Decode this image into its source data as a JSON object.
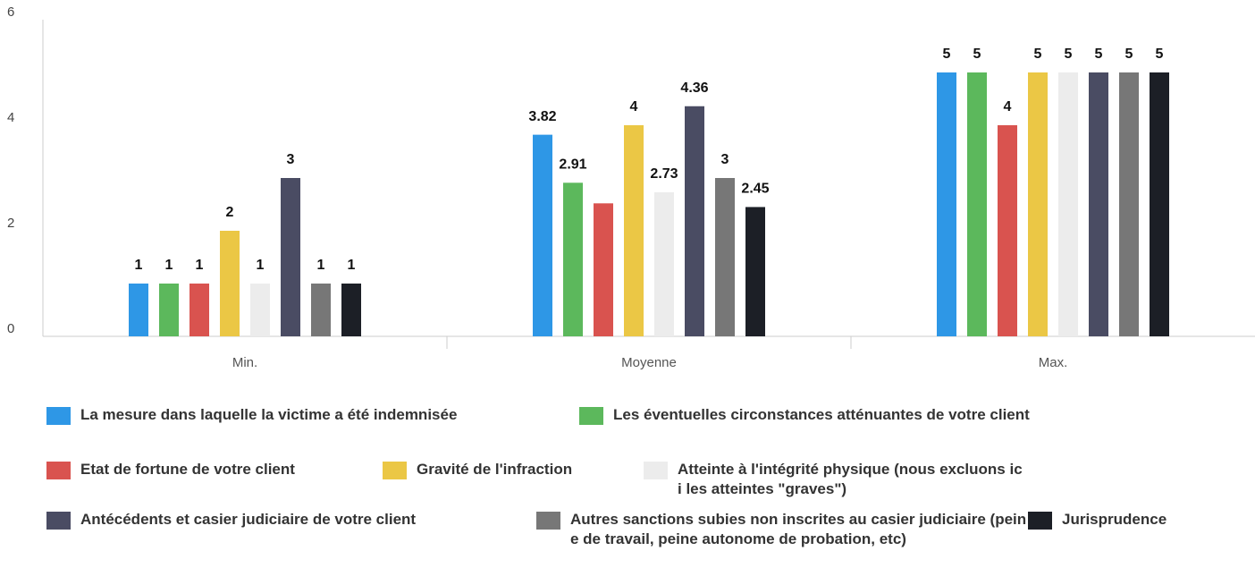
{
  "chart_data": {
    "type": "bar",
    "categories": [
      "Min.",
      "Moyenne",
      "Max."
    ],
    "ylim": [
      0,
      6
    ],
    "yticks": [
      0,
      2,
      4,
      6
    ],
    "series": [
      {
        "name": "La mesure dans laquelle la victime a été indemnisée",
        "color": "#2e97e6",
        "values": [
          1,
          3.82,
          5
        ]
      },
      {
        "name": "Les éventuelles circonstances atténuantes de votre client",
        "color": "#5cb85c",
        "values": [
          1,
          2.91,
          5
        ]
      },
      {
        "name": "Etat de fortune de votre client",
        "color": "#d9534f",
        "values": [
          1,
          2.52,
          4
        ],
        "value_labels": [
          1,
          null,
          4
        ]
      },
      {
        "name": "Gravité de l'infraction",
        "color": "#ebc745",
        "values": [
          2,
          4,
          5
        ]
      },
      {
        "name": "Atteinte à l'intégrité physique (nous excluons ici les atteintes \"graves\")",
        "color": "#ececec",
        "values": [
          1,
          2.73,
          5
        ]
      },
      {
        "name": "Antécédents et casier judiciaire de votre client",
        "color": "#4a4c63",
        "values": [
          3,
          4.36,
          5
        ]
      },
      {
        "name": "Autres sanctions subies non inscrites au casier judiciaire (peine de travail, peine autonome de probation, etc)",
        "color": "#777777",
        "values": [
          1,
          3,
          5
        ]
      },
      {
        "name": "Jurisprudence",
        "color": "#1c1f26",
        "values": [
          1,
          2.45,
          5
        ]
      }
    ]
  }
}
